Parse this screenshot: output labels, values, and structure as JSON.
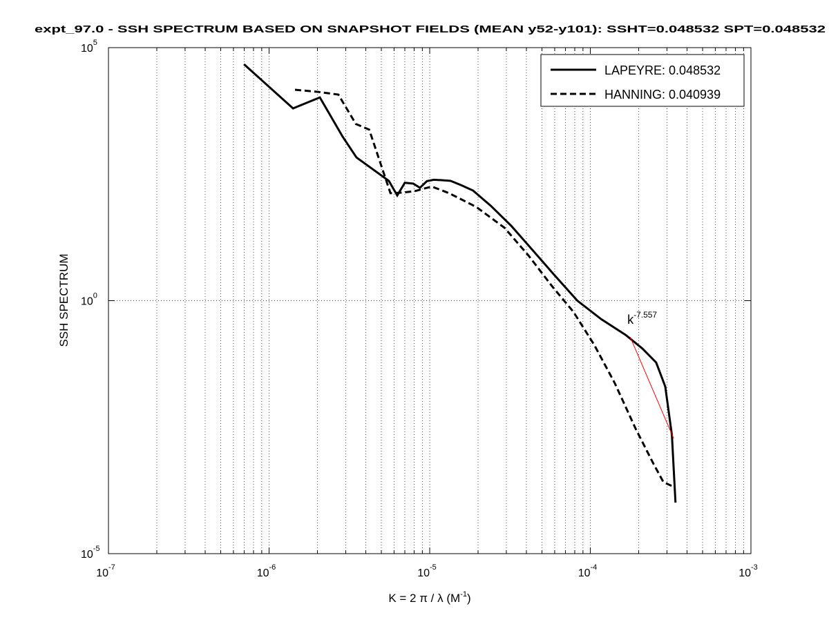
{
  "chart_data": {
    "type": "line",
    "title": "expt_97.0 - SSH SPECTRUM BASED ON SNAPSHOT FIELDS (MEAN y52-y101): SSHT=0.048532 SPT=0.048532",
    "xlabel": {
      "text": "K = 2 π / λ  (M",
      "sup": "-1",
      "suffix": ")"
    },
    "ylabel": "SSH SPECTRUM",
    "xscale": "log",
    "yscale": "log",
    "xlim": [
      1e-07,
      0.001
    ],
    "ylim": [
      1e-05,
      100000.0
    ],
    "xticks": [
      {
        "value": 1e-07,
        "label": "10",
        "exponent": "-7"
      },
      {
        "value": 1e-06,
        "label": "10",
        "exponent": "-6"
      },
      {
        "value": 1e-05,
        "label": "10",
        "exponent": "-5"
      },
      {
        "value": 0.0001,
        "label": "10",
        "exponent": "-4"
      },
      {
        "value": 0.001,
        "label": "10",
        "exponent": "-3"
      }
    ],
    "xminor": [
      2e-07,
      3e-07,
      4e-07,
      5e-07,
      6e-07,
      7e-07,
      8e-07,
      9e-07,
      2e-06,
      3e-06,
      4e-06,
      5e-06,
      6e-06,
      7e-06,
      8e-06,
      9e-06,
      2e-05,
      3e-05,
      4e-05,
      5e-05,
      6e-05,
      7e-05,
      8e-05,
      9e-05,
      0.0002,
      0.0003,
      0.0004,
      0.0005,
      0.0006,
      0.0007,
      0.0008,
      0.0009
    ],
    "yticks": [
      {
        "value": 1e-05,
        "label": "10",
        "exponent": "-5"
      },
      {
        "value": 1,
        "label": "10",
        "exponent": "0"
      },
      {
        "value": 100000.0,
        "label": "10",
        "exponent": "5"
      }
    ],
    "grid": true,
    "legend": "upper right",
    "series": [
      {
        "name": "LAPEYRE: 0.048532",
        "color": "#000000",
        "style": "solid",
        "x": [
          6.97e-07,
          1.41e-06,
          2.07e-06,
          2.87e-06,
          3.5e-06,
          5.57e-06,
          6.28e-06,
          7e-06,
          7.9e-06,
          8.7e-06,
          9.6e-06,
          1.06e-05,
          1.19e-05,
          1.35e-05,
          1.58e-05,
          1.86e-05,
          2.4e-05,
          3.22e-05,
          4.37e-05,
          5.9e-05,
          8.3e-05,
          0.000117,
          0.000166,
          0.000211,
          0.000257,
          0.000293,
          0.000322,
          0.000339
        ],
        "values": [
          47000,
          6300,
          10400,
          1740,
          676,
          233,
          120,
          214,
          205,
          170,
          230,
          245,
          240,
          233,
          190,
          150,
          75,
          30,
          10,
          3.35,
          1.0,
          0.43,
          0.21,
          0.113,
          0.06,
          0.02,
          0.0022,
          0.000102
        ]
      },
      {
        "name": "HANNING: 0.040939",
        "color": "#000000",
        "style": "dashed",
        "x": [
          1.45e-06,
          2e-06,
          2.7e-06,
          3.47e-06,
          4.2e-06,
          5.7e-06,
          6.6e-06,
          8e-06,
          1.03e-05,
          1.32e-05,
          1.95e-05,
          2.92e-05,
          4.12e-05,
          5.8e-05,
          7.85e-05,
          0.000106,
          0.000142,
          0.000191,
          0.000245,
          0.000285,
          0.00033
        ],
        "values": [
          14700,
          13400,
          11800,
          3100,
          2400,
          133,
          136,
          145,
          180,
          133,
          71,
          27.6,
          7.8,
          1.9,
          0.6,
          0.132,
          0.0234,
          0.003,
          0.00063,
          0.00026,
          0.00021
        ]
      }
    ],
    "fit_line": {
      "color": "#ff0000",
      "x": [
        0.000177,
        0.00033
      ],
      "values": [
        0.192,
        0.0019
      ]
    },
    "annotation": {
      "text": "k",
      "sup": "-7.557",
      "x": 0.00017,
      "y": 0.35
    }
  }
}
